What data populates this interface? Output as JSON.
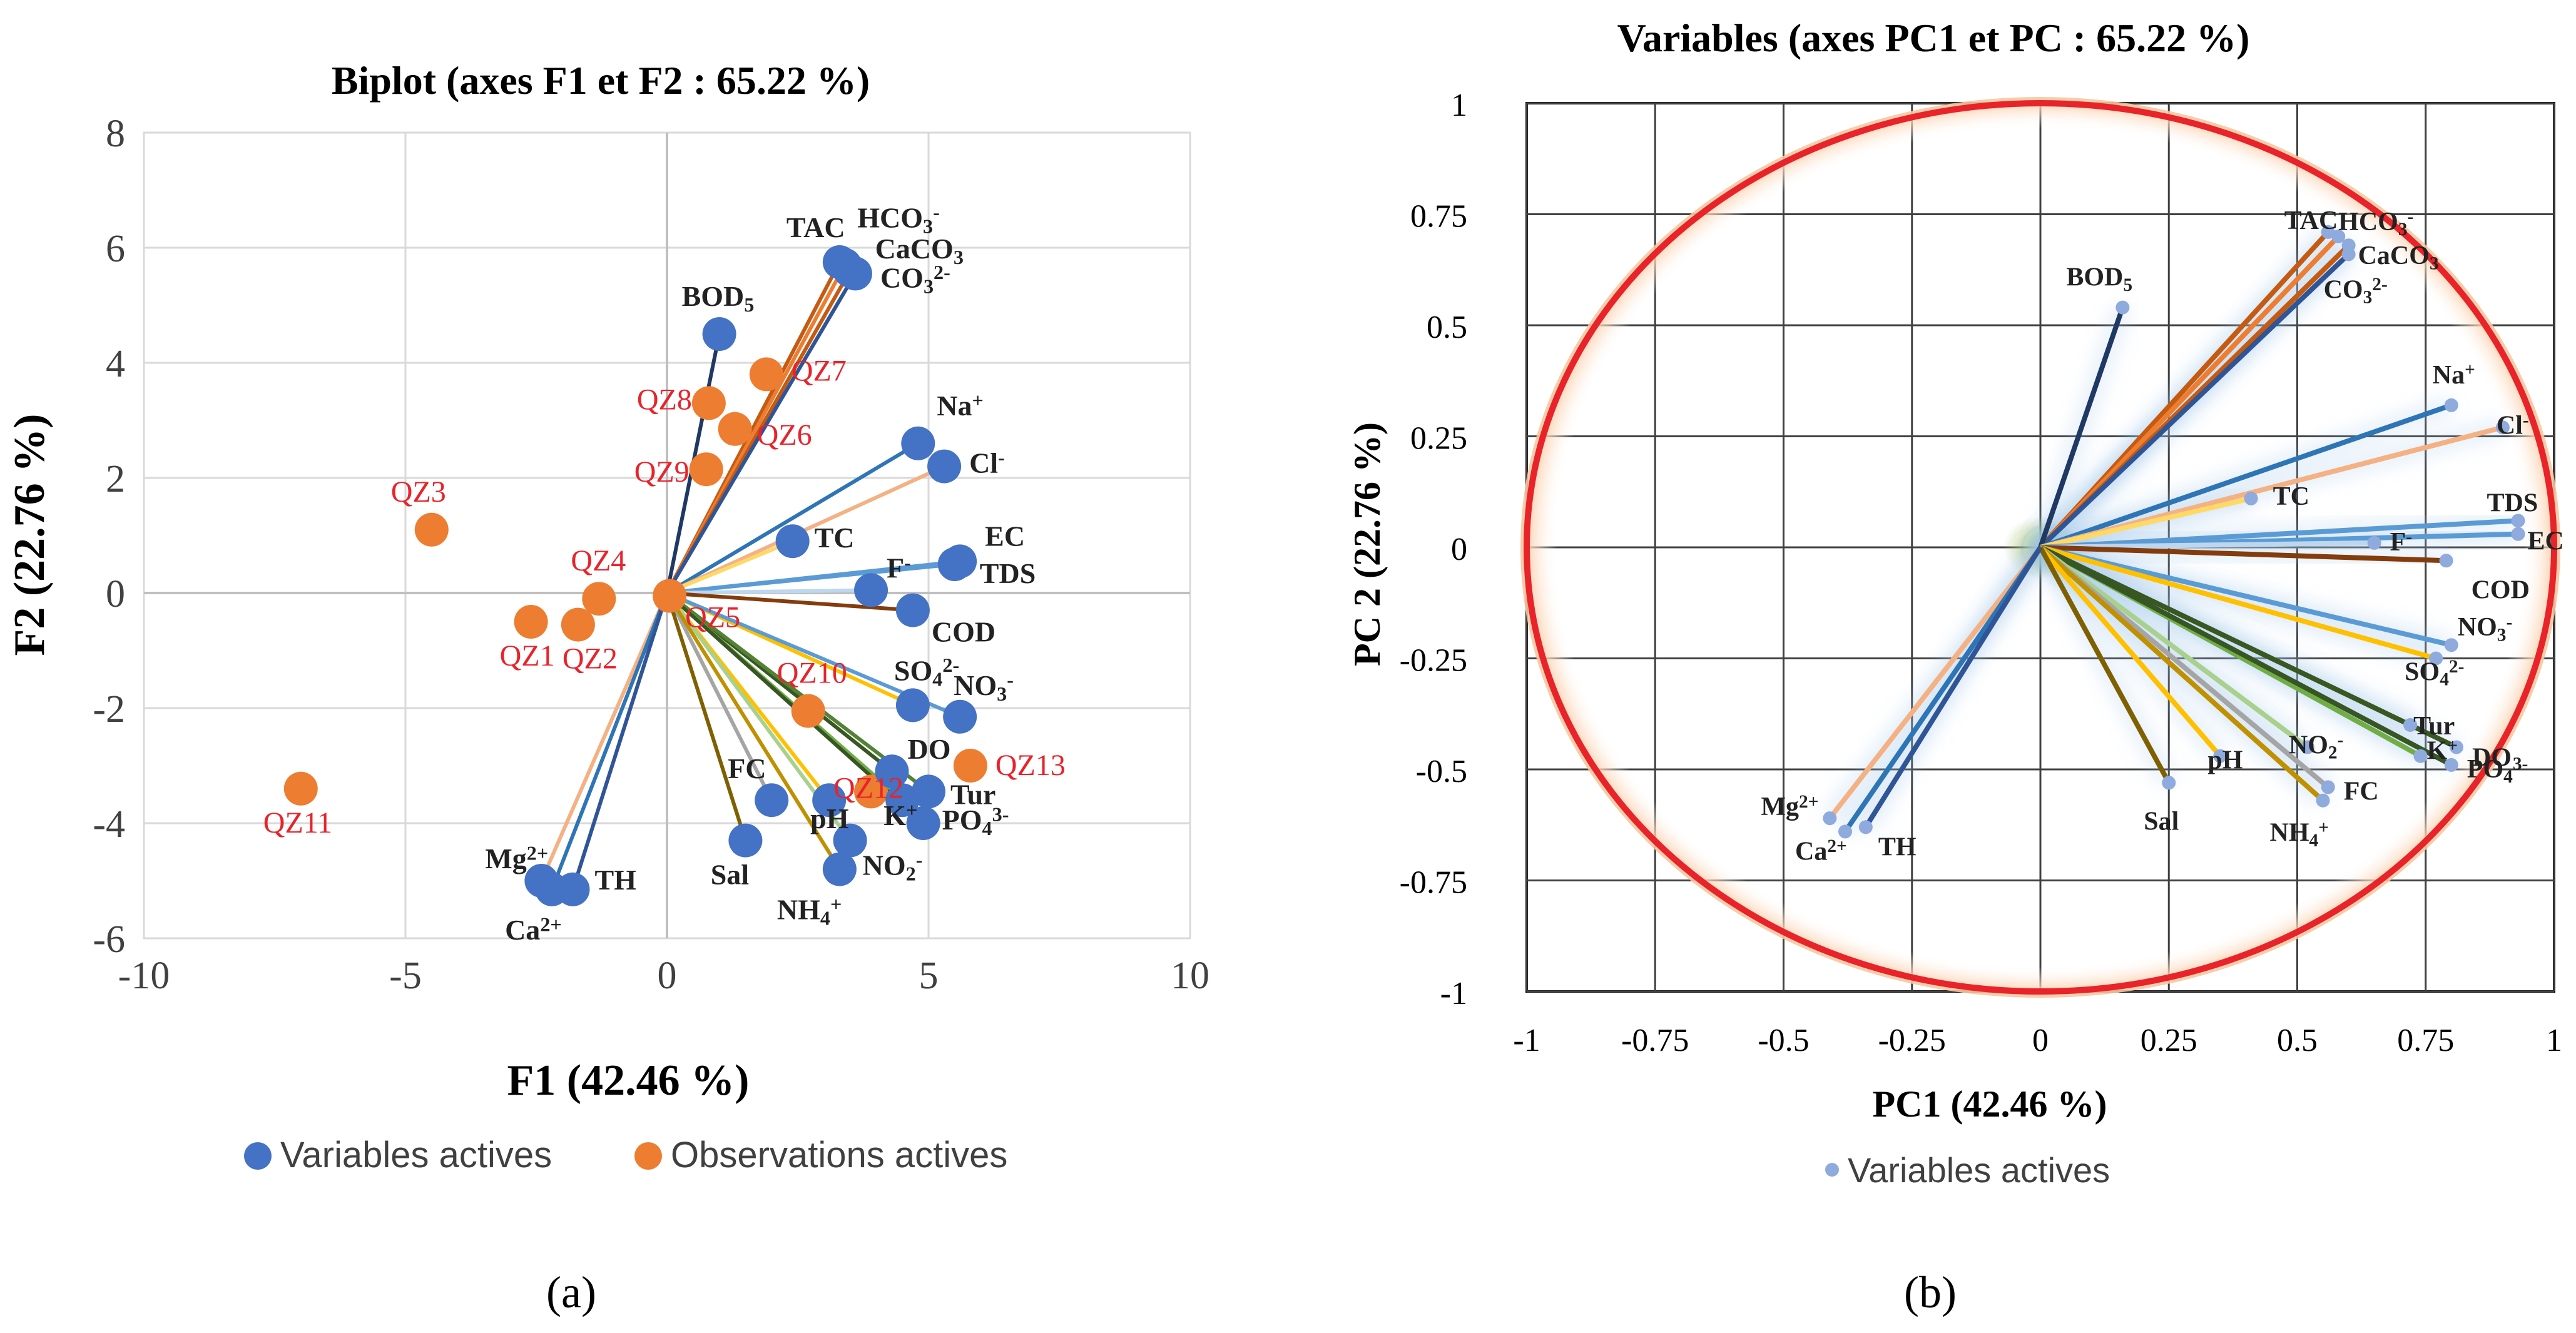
{
  "chart_data": [
    {
      "type": "scatter",
      "panel": "(a)",
      "title": "Biplot (axes F1 et F2 : 65.22 %)",
      "xlabel": "F1 (42.46 %)",
      "ylabel": "F2 (22.76 %)",
      "xlim": [
        -10,
        10
      ],
      "ylim": [
        -6,
        8
      ],
      "xticks": [
        -10,
        -5,
        0,
        5,
        10
      ],
      "yticks": [
        -6,
        -4,
        -2,
        0,
        2,
        4,
        6,
        8
      ],
      "grid": true,
      "legend_position": "bottom",
      "series": [
        {
          "name": "Variables actives",
          "color": "#4472c4",
          "points": [
            {
              "label": "TAC",
              "x": 3.3,
              "y": 5.75
            },
            {
              "label": "HCO3-",
              "x": 3.4,
              "y": 5.7
            },
            {
              "label": "CaCO3",
              "x": 3.5,
              "y": 5.6
            },
            {
              "label": "CO32-",
              "x": 3.6,
              "y": 5.55
            },
            {
              "label": "BOD5",
              "x": 1.0,
              "y": 4.5
            },
            {
              "label": "Na+",
              "x": 4.8,
              "y": 2.6
            },
            {
              "label": "Cl-",
              "x": 5.3,
              "y": 2.2
            },
            {
              "label": "TC",
              "x": 2.4,
              "y": 0.9
            },
            {
              "label": "EC",
              "x": 5.6,
              "y": 0.55
            },
            {
              "label": "TDS",
              "x": 5.5,
              "y": 0.5
            },
            {
              "label": "F-",
              "x": 3.9,
              "y": 0.05
            },
            {
              "label": "COD",
              "x": 4.7,
              "y": -0.3
            },
            {
              "label": "SO42-",
              "x": 4.7,
              "y": -1.95
            },
            {
              "label": "NO3-",
              "x": 5.6,
              "y": -2.15
            },
            {
              "label": "DO",
              "x": 4.3,
              "y": -3.1
            },
            {
              "label": "Tur",
              "x": 5.0,
              "y": -3.45
            },
            {
              "label": "K+",
              "x": 4.5,
              "y": -3.6
            },
            {
              "label": "PO43-",
              "x": 4.9,
              "y": -4.0
            },
            {
              "label": "FC",
              "x": 2.0,
              "y": -3.6
            },
            {
              "label": "pH",
              "x": 3.1,
              "y": -3.6
            },
            {
              "label": "NO2-",
              "x": 3.5,
              "y": -4.3
            },
            {
              "label": "NH4+",
              "x": 3.3,
              "y": -4.8
            },
            {
              "label": "Sal",
              "x": 1.5,
              "y": -4.3
            },
            {
              "label": "Mg2+",
              "x": -2.4,
              "y": -5.0
            },
            {
              "label": "Ca2+",
              "x": -2.2,
              "y": -5.15
            },
            {
              "label": "TH",
              "x": -1.8,
              "y": -5.15
            }
          ]
        },
        {
          "name": "Observations actives",
          "color": "#ed7d31",
          "points": [
            {
              "label": "QZ7",
              "x": 1.9,
              "y": 3.8
            },
            {
              "label": "QZ8",
              "x": 0.8,
              "y": 3.3
            },
            {
              "label": "QZ6",
              "x": 1.3,
              "y": 2.85
            },
            {
              "label": "QZ9",
              "x": 0.75,
              "y": 2.15
            },
            {
              "label": "QZ3",
              "x": -4.5,
              "y": 1.1
            },
            {
              "label": "QZ4",
              "x": -1.3,
              "y": -0.1
            },
            {
              "label": "QZ5",
              "x": 0.05,
              "y": -0.05
            },
            {
              "label": "QZ1",
              "x": -2.6,
              "y": -0.5
            },
            {
              "label": "QZ2",
              "x": -1.7,
              "y": -0.55
            },
            {
              "label": "QZ10",
              "x": 2.7,
              "y": -2.05
            },
            {
              "label": "QZ13",
              "x": 5.8,
              "y": -3.0
            },
            {
              "label": "QZ12",
              "x": 3.9,
              "y": -3.45
            },
            {
              "label": "QZ11",
              "x": -7.0,
              "y": -3.4
            }
          ]
        }
      ]
    },
    {
      "type": "scatter",
      "panel": "(b)",
      "title": "Variables (axes PC1 et PC : 65.22 %)",
      "xlabel": "PC1 (42.46 %)",
      "ylabel": "PC 2 (22.76 %)",
      "xlim": [
        -1,
        1
      ],
      "ylim": [
        -1,
        1
      ],
      "xticks": [
        -1,
        -0.75,
        -0.5,
        -0.25,
        0,
        0.25,
        0.5,
        0.75,
        1
      ],
      "yticks": [
        -1,
        -0.75,
        -0.5,
        -0.25,
        0,
        0.25,
        0.5,
        0.75,
        1
      ],
      "grid": true,
      "correlation_circle": true,
      "legend_position": "bottom",
      "series": [
        {
          "name": "Variables actives",
          "color": "#8faadc",
          "points": [
            {
              "label": "TAC",
              "x": 0.56,
              "y": 0.71
            },
            {
              "label": "HCO3-",
              "x": 0.58,
              "y": 0.7
            },
            {
              "label": "CaCO3",
              "x": 0.6,
              "y": 0.68
            },
            {
              "label": "CO32-",
              "x": 0.6,
              "y": 0.66
            },
            {
              "label": "BOD5",
              "x": 0.16,
              "y": 0.54
            },
            {
              "label": "Na+",
              "x": 0.8,
              "y": 0.32
            },
            {
              "label": "Cl-",
              "x": 0.9,
              "y": 0.27
            },
            {
              "label": "TC",
              "x": 0.41,
              "y": 0.11
            },
            {
              "label": "TDS",
              "x": 0.93,
              "y": 0.06
            },
            {
              "label": "EC",
              "x": 0.93,
              "y": 0.03
            },
            {
              "label": "F-",
              "x": 0.65,
              "y": 0.01
            },
            {
              "label": "COD",
              "x": 0.79,
              "y": -0.03
            },
            {
              "label": "NO3-",
              "x": 0.8,
              "y": -0.22
            },
            {
              "label": "SO42-",
              "x": 0.77,
              "y": -0.25
            },
            {
              "label": "Tur",
              "x": 0.72,
              "y": -0.4
            },
            {
              "label": "DO",
              "x": 0.81,
              "y": -0.45
            },
            {
              "label": "K+",
              "x": 0.74,
              "y": -0.47
            },
            {
              "label": "PO43-",
              "x": 0.8,
              "y": -0.49
            },
            {
              "label": "NO2-",
              "x": 0.52,
              "y": -0.45
            },
            {
              "label": "FC",
              "x": 0.56,
              "y": -0.54
            },
            {
              "label": "NH4+",
              "x": 0.55,
              "y": -0.57
            },
            {
              "label": "pH",
              "x": 0.35,
              "y": -0.47
            },
            {
              "label": "Sal",
              "x": 0.25,
              "y": -0.53
            },
            {
              "label": "Mg2+",
              "x": -0.41,
              "y": -0.61
            },
            {
              "label": "Ca2+",
              "x": -0.38,
              "y": -0.64
            },
            {
              "label": "TH",
              "x": -0.34,
              "y": -0.63
            }
          ]
        }
      ]
    }
  ],
  "captions": [
    "(a)",
    "(b)"
  ]
}
